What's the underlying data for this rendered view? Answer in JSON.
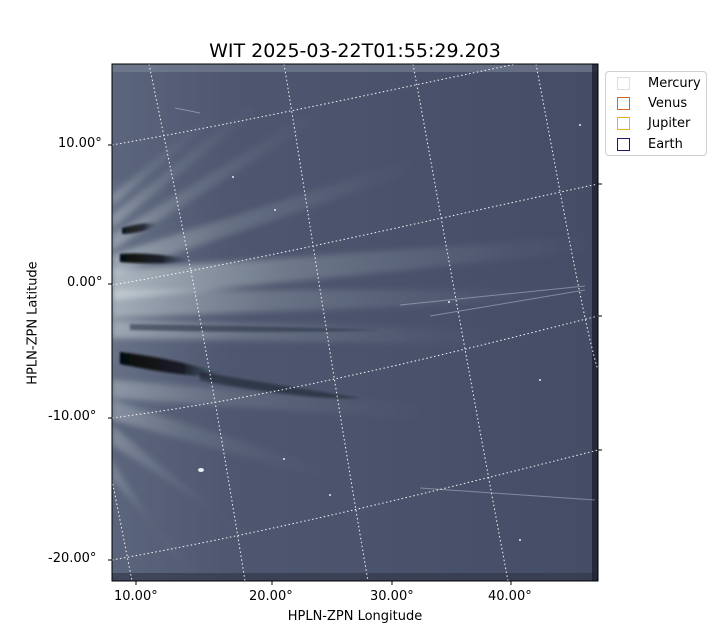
{
  "figure": {
    "title": "WIT 2025-03-22T01:55:29.203",
    "xlabel": "HPLN-ZPN Longitude",
    "ylabel": "HPLN-ZPN Latitude",
    "x_ticks": [
      "10.00°",
      "20.00°",
      "30.00°",
      "40.00°"
    ],
    "y_ticks": [
      "10.00°",
      "0.00°",
      "-10.00°",
      "-20.00°"
    ],
    "legend": [
      {
        "label": "Mercury",
        "color": "#dddddd"
      },
      {
        "label": "Venus",
        "color": "#d2691e"
      },
      {
        "label": "Jupiter",
        "color": "#e6b422"
      },
      {
        "label": "Earth",
        "color": "#1a1a6e"
      }
    ],
    "colors": {
      "background": "#47506a",
      "ray_highlight": "#e8f0ef",
      "dark_band": "#0b0d12",
      "grid": "#ffffff"
    },
    "grid": "on (dotted white coordinate grid)",
    "legend_placement": "outside top-right"
  }
}
